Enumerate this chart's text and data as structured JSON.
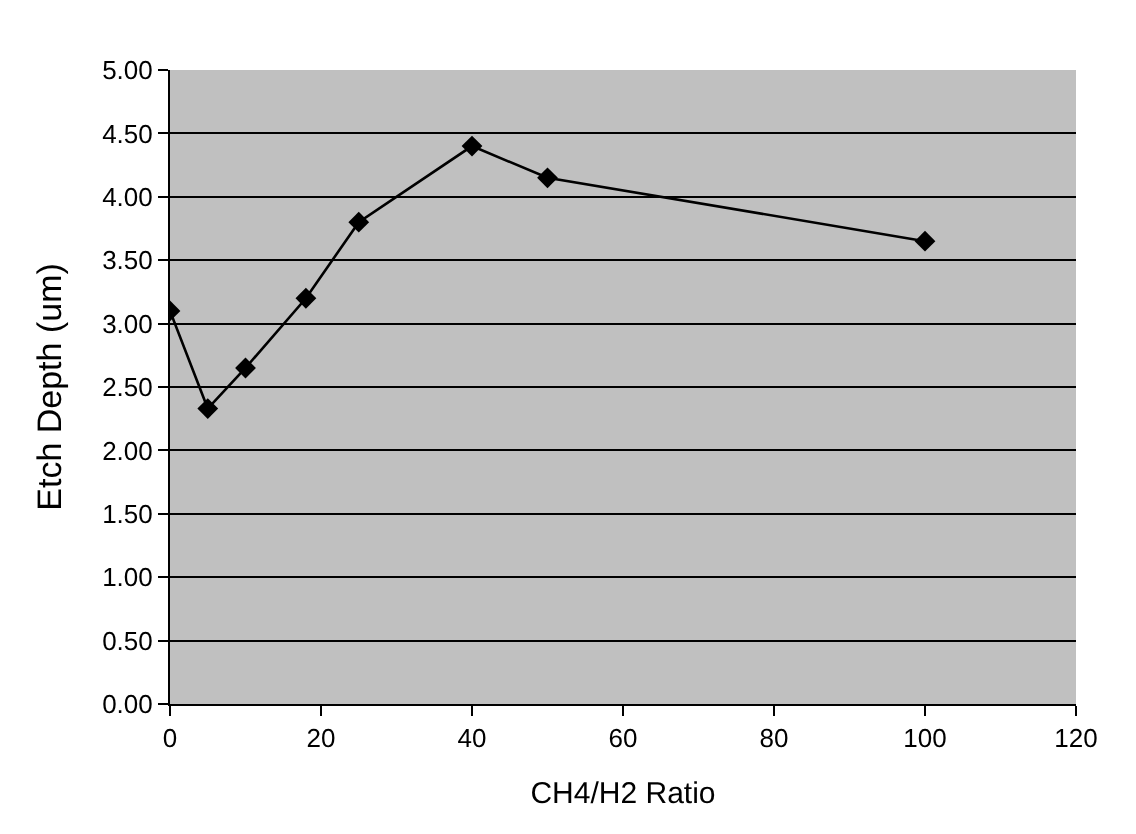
{
  "chart_data": {
    "type": "line",
    "xlabel": "CH4/H2 Ratio",
    "ylabel": "Etch Depth (um)",
    "x": [
      0,
      5,
      10,
      18,
      25,
      40,
      50,
      100
    ],
    "series": [
      {
        "color": "#000000",
        "values": [
          3.1,
          2.33,
          2.65,
          3.2,
          3.8,
          4.4,
          4.15,
          3.65
        ]
      }
    ],
    "xlim": [
      0,
      120
    ],
    "xticks": [
      0,
      20,
      40,
      60,
      80,
      100,
      120
    ],
    "ylim": [
      0,
      5
    ],
    "yticks": [
      {
        "value": 0,
        "label": "0.00"
      },
      {
        "value": 0.5,
        "label": "0.50"
      },
      {
        "value": 1,
        "label": "1.00"
      },
      {
        "value": 1.5,
        "label": "1.50"
      },
      {
        "value": 2,
        "label": "2.00"
      },
      {
        "value": 2.5,
        "label": "2.50"
      },
      {
        "value": 3,
        "label": "3.00"
      },
      {
        "value": 3.5,
        "label": "3.50"
      },
      {
        "value": 4,
        "label": "4.00"
      },
      {
        "value": 4.5,
        "label": "4.50"
      },
      {
        "value": 5,
        "label": "5.00"
      }
    ],
    "grid": "y",
    "legend": false,
    "marker": "diamond",
    "line_style": "solid"
  }
}
